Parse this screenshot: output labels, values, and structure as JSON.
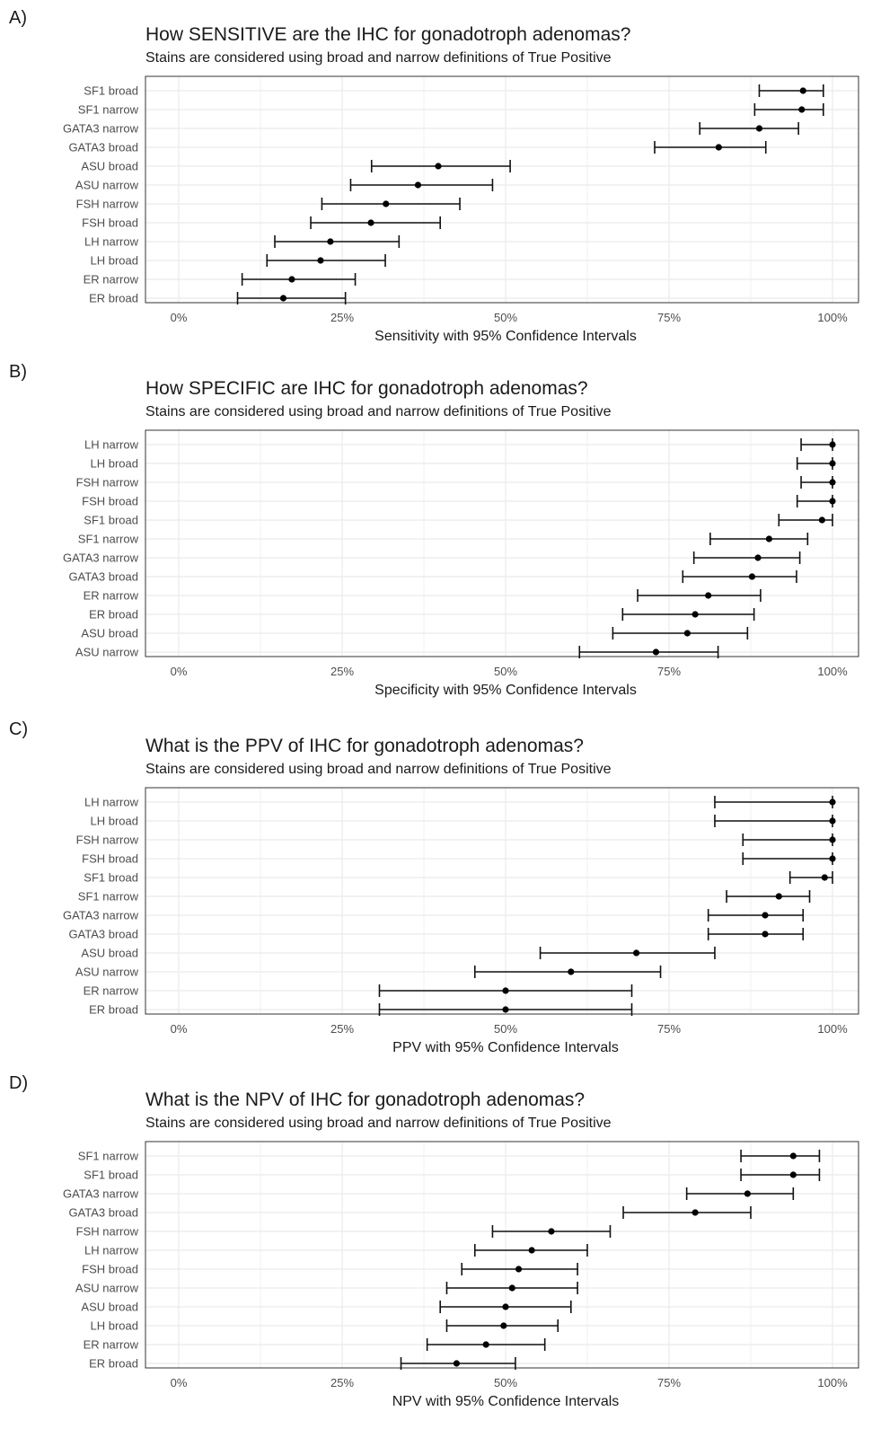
{
  "chart_data": [
    {
      "type": "scatter",
      "panel_label": "A)",
      "title": "How SENSITIVE are the IHC for gonadotroph adenomas?",
      "subtitle": "Stains are considered using broad and narrow definitions of True Positive",
      "xlabel": "Sensitivity with 95% Confidence Intervals",
      "ylabel": "",
      "xlim": [
        0,
        1
      ],
      "x_ticks": [
        "0%",
        "25%",
        "50%",
        "75%",
        "100%"
      ],
      "grid": true,
      "categories": [
        "SF1 broad",
        "SF1 narrow",
        "GATA3 narrow",
        "GATA3 broad",
        "ASU broad",
        "ASU narrow",
        "FSH narrow",
        "FSH broad",
        "LH narrow",
        "LH broad",
        "ER narrow",
        "ER broad"
      ],
      "estimates": [
        0.955,
        0.953,
        0.888,
        0.826,
        0.397,
        0.366,
        0.317,
        0.294,
        0.232,
        0.217,
        0.173,
        0.16
      ],
      "lower": [
        0.888,
        0.881,
        0.797,
        0.728,
        0.295,
        0.263,
        0.219,
        0.202,
        0.147,
        0.135,
        0.097,
        0.09
      ],
      "upper": [
        0.986,
        0.986,
        0.948,
        0.898,
        0.507,
        0.48,
        0.43,
        0.4,
        0.337,
        0.316,
        0.27,
        0.255
      ]
    },
    {
      "type": "scatter",
      "panel_label": "B)",
      "title": "How SPECIFIC are IHC for gonadotroph adenomas?",
      "subtitle": "Stains are considered using broad and narrow definitions of True Positive",
      "xlabel": "Specificity with 95% Confidence Intervals",
      "ylabel": "",
      "xlim": [
        0,
        1
      ],
      "x_ticks": [
        "0%",
        "25%",
        "50%",
        "75%",
        "100%"
      ],
      "grid": true,
      "categories": [
        "LH narrow",
        "LH broad",
        "FSH narrow",
        "FSH broad",
        "SF1 broad",
        "SF1 narrow",
        "GATA3 narrow",
        "GATA3 broad",
        "ER narrow",
        "ER broad",
        "ASU broad",
        "ASU narrow"
      ],
      "estimates": [
        1.0,
        1.0,
        1.0,
        1.0,
        0.984,
        0.903,
        0.886,
        0.877,
        0.81,
        0.79,
        0.778,
        0.73
      ],
      "lower": [
        0.952,
        0.946,
        0.952,
        0.946,
        0.918,
        0.813,
        0.788,
        0.771,
        0.702,
        0.679,
        0.664,
        0.613
      ],
      "upper": [
        1.0,
        1.0,
        1.0,
        1.0,
        1.0,
        0.962,
        0.95,
        0.945,
        0.89,
        0.88,
        0.87,
        0.825
      ]
    },
    {
      "type": "scatter",
      "panel_label": "C)",
      "title": "What is the PPV of IHC for gonadotroph adenomas?",
      "subtitle": "Stains are considered using broad and narrow definitions of True Positive",
      "xlabel": "PPV with 95% Confidence Intervals",
      "ylabel": "",
      "xlim": [
        0,
        1
      ],
      "x_ticks": [
        "0%",
        "25%",
        "50%",
        "75%",
        "100%"
      ],
      "grid": true,
      "categories": [
        "LH narrow",
        "LH broad",
        "FSH narrow",
        "FSH broad",
        "SF1 broad",
        "SF1 narrow",
        "GATA3 narrow",
        "GATA3 broad",
        "ASU broad",
        "ASU narrow",
        "ER narrow",
        "ER broad"
      ],
      "estimates": [
        1.0,
        1.0,
        1.0,
        1.0,
        0.988,
        0.918,
        0.897,
        0.897,
        0.7,
        0.6,
        0.5,
        0.5
      ],
      "lower": [
        0.82,
        0.82,
        0.863,
        0.863,
        0.935,
        0.838,
        0.81,
        0.81,
        0.553,
        0.453,
        0.307,
        0.307
      ],
      "upper": [
        1.0,
        1.0,
        1.0,
        1.0,
        1.0,
        0.965,
        0.955,
        0.955,
        0.82,
        0.737,
        0.693,
        0.693
      ]
    },
    {
      "type": "scatter",
      "panel_label": "D)",
      "title": "What is the NPV of IHC for gonadotroph adenomas?",
      "subtitle": "Stains are considered using broad and narrow definitions of True Positive",
      "xlabel": "NPV with 95% Confidence Intervals",
      "ylabel": "",
      "xlim": [
        0,
        1
      ],
      "x_ticks": [
        "0%",
        "25%",
        "50%",
        "75%",
        "100%"
      ],
      "grid": true,
      "categories": [
        "SF1 narrow",
        "SF1 broad",
        "GATA3 narrow",
        "GATA3 broad",
        "FSH narrow",
        "LH narrow",
        "FSH broad",
        "ASU narrow",
        "ASU broad",
        "LH broad",
        "ER narrow",
        "ER broad"
      ],
      "estimates": [
        0.94,
        0.94,
        0.87,
        0.79,
        0.57,
        0.54,
        0.52,
        0.51,
        0.5,
        0.497,
        0.47,
        0.425
      ],
      "lower": [
        0.86,
        0.86,
        0.777,
        0.68,
        0.48,
        0.453,
        0.433,
        0.41,
        0.4,
        0.41,
        0.38,
        0.34
      ],
      "upper": [
        0.98,
        0.98,
        0.94,
        0.875,
        0.66,
        0.625,
        0.61,
        0.61,
        0.6,
        0.58,
        0.56,
        0.515
      ]
    }
  ],
  "colors": {
    "panel_background": "#ffffff",
    "panel_border": "#333333",
    "grid": "#ebebeb",
    "errorbar": "#111111",
    "point": "#000000",
    "tick_text": "#4d4d4d"
  }
}
